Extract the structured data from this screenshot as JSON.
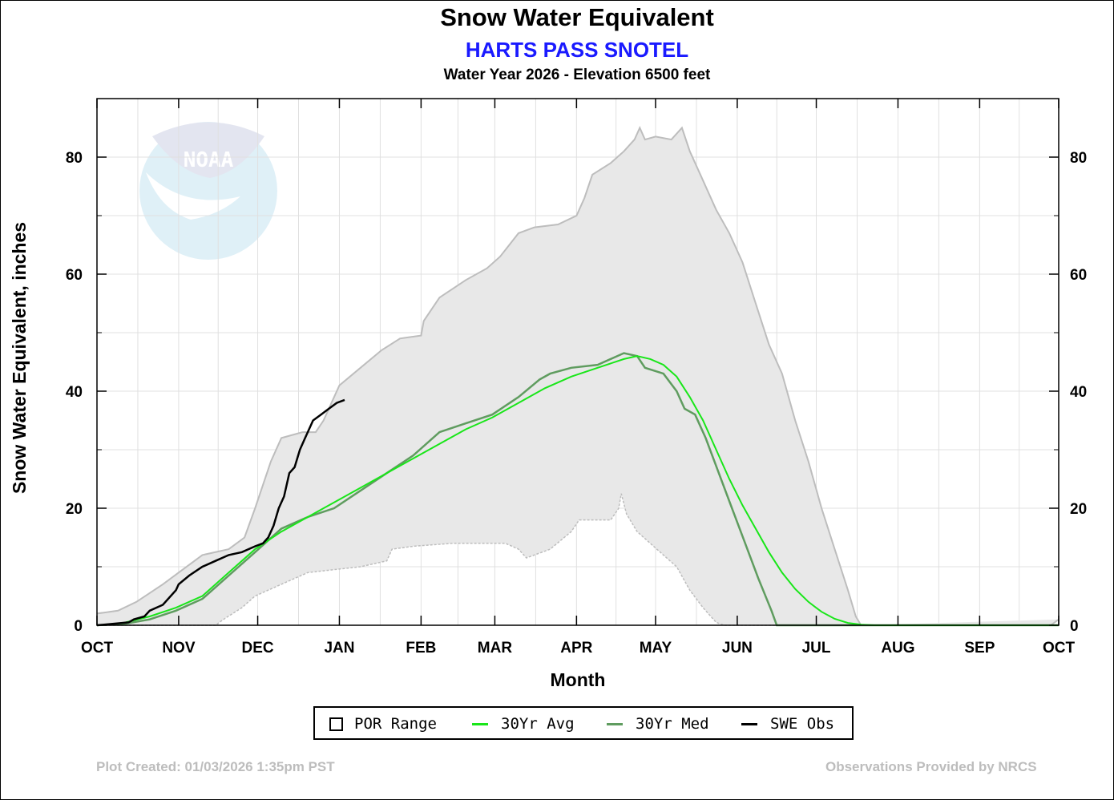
{
  "title": "Snow Water Equivalent",
  "subtitle": "HARTS PASS SNOTEL",
  "subtitle2": "Water Year 2026 -  Elevation 6500 feet",
  "footer_left": "Plot Created: 01/03/2026 1:35pm PST",
  "footer_right": "Observations Provided by NRCS",
  "logo_text": "NOAA",
  "legend": {
    "por": "POR Range",
    "avg": "30Yr Avg",
    "med": "30Yr Med",
    "obs": "SWE Obs"
  },
  "colors": {
    "por_fill": "#e8e8e8",
    "por_edge": "#bdbdbd",
    "avg": "#19e619",
    "med": "#5f9c5f",
    "obs": "#000000",
    "grid": "#e0e0e0"
  },
  "chart_data": {
    "type": "area",
    "title": "Snow Water Equivalent",
    "xlabel": "Month",
    "ylabel": "Snow Water Equivalent, inches",
    "ylim": [
      0,
      90
    ],
    "yticks": [
      0,
      20,
      40,
      60,
      80
    ],
    "xlim_days": [
      0,
      365
    ],
    "months": [
      {
        "label": "OCT",
        "day": 0
      },
      {
        "label": "NOV",
        "day": 31
      },
      {
        "label": "DEC",
        "day": 61
      },
      {
        "label": "JAN",
        "day": 92
      },
      {
        "label": "FEB",
        "day": 123
      },
      {
        "label": "MAR",
        "day": 151
      },
      {
        "label": "APR",
        "day": 182
      },
      {
        "label": "MAY",
        "day": 212
      },
      {
        "label": "JUN",
        "day": 243
      },
      {
        "label": "JUL",
        "day": 273
      },
      {
        "label": "AUG",
        "day": 304
      },
      {
        "label": "SEP",
        "day": 335
      },
      {
        "label": "OCT",
        "day": 365
      }
    ],
    "por_max": [
      [
        0,
        2
      ],
      [
        8,
        2.5
      ],
      [
        15,
        4
      ],
      [
        25,
        7
      ],
      [
        31,
        9
      ],
      [
        40,
        12
      ],
      [
        50,
        13
      ],
      [
        56,
        15
      ],
      [
        60,
        20
      ],
      [
        66,
        28
      ],
      [
        70,
        32
      ],
      [
        78,
        33
      ],
      [
        83,
        33
      ],
      [
        86,
        35
      ],
      [
        92,
        41
      ],
      [
        100,
        44
      ],
      [
        108,
        47
      ],
      [
        115,
        49
      ],
      [
        123,
        49.5
      ],
      [
        124,
        52
      ],
      [
        130,
        56
      ],
      [
        140,
        59
      ],
      [
        148,
        61
      ],
      [
        153,
        63
      ],
      [
        160,
        67
      ],
      [
        166,
        68
      ],
      [
        175,
        68.5
      ],
      [
        182,
        70
      ],
      [
        185,
        73
      ],
      [
        188,
        77
      ],
      [
        195,
        79
      ],
      [
        200,
        81
      ],
      [
        204,
        83
      ],
      [
        206,
        85
      ],
      [
        208,
        83
      ],
      [
        212,
        83.5
      ],
      [
        218,
        83
      ],
      [
        222,
        85
      ],
      [
        225,
        81
      ],
      [
        230,
        76
      ],
      [
        235,
        71
      ],
      [
        240,
        67
      ],
      [
        245,
        62
      ],
      [
        250,
        55
      ],
      [
        255,
        48
      ],
      [
        260,
        43
      ],
      [
        265,
        35
      ],
      [
        270,
        28
      ],
      [
        275,
        20
      ],
      [
        280,
        13
      ],
      [
        285,
        6
      ],
      [
        288,
        1.5
      ],
      [
        290,
        0
      ],
      [
        362,
        0
      ],
      [
        365,
        1
      ]
    ],
    "por_min": [
      [
        0,
        0
      ],
      [
        45,
        0
      ],
      [
        48,
        1
      ],
      [
        55,
        3
      ],
      [
        60,
        5
      ],
      [
        65,
        6
      ],
      [
        70,
        7
      ],
      [
        80,
        9
      ],
      [
        90,
        9.5
      ],
      [
        100,
        10
      ],
      [
        110,
        11
      ],
      [
        112,
        13
      ],
      [
        120,
        13.5
      ],
      [
        135,
        14
      ],
      [
        155,
        14
      ],
      [
        160,
        13
      ],
      [
        163,
        11.5
      ],
      [
        172,
        13
      ],
      [
        180,
        16
      ],
      [
        183,
        18
      ],
      [
        195,
        18
      ],
      [
        198,
        20
      ],
      [
        199,
        22.5
      ],
      [
        201,
        19
      ],
      [
        205,
        16
      ],
      [
        210,
        14
      ],
      [
        215,
        12
      ],
      [
        220,
        10
      ],
      [
        225,
        6
      ],
      [
        230,
        3
      ],
      [
        235,
        0.5
      ],
      [
        238,
        0
      ],
      [
        290,
        0
      ]
    ],
    "avg": [
      [
        0,
        0
      ],
      [
        10,
        0.4
      ],
      [
        20,
        1.5
      ],
      [
        30,
        3
      ],
      [
        40,
        5
      ],
      [
        50,
        9
      ],
      [
        60,
        13
      ],
      [
        70,
        16
      ],
      [
        80,
        18.5
      ],
      [
        90,
        21
      ],
      [
        100,
        23.5
      ],
      [
        110,
        26
      ],
      [
        120,
        28.5
      ],
      [
        130,
        31
      ],
      [
        140,
        33.5
      ],
      [
        150,
        35.5
      ],
      [
        160,
        38
      ],
      [
        170,
        40.5
      ],
      [
        180,
        42.5
      ],
      [
        190,
        44
      ],
      [
        200,
        45.5
      ],
      [
        205,
        46
      ],
      [
        210,
        45.5
      ],
      [
        215,
        44.5
      ],
      [
        220,
        42.5
      ],
      [
        225,
        39
      ],
      [
        230,
        35
      ],
      [
        235,
        30
      ],
      [
        240,
        25
      ],
      [
        245,
        20.5
      ],
      [
        250,
        16.5
      ],
      [
        255,
        12.5
      ],
      [
        260,
        9
      ],
      [
        265,
        6.2
      ],
      [
        270,
        4
      ],
      [
        275,
        2.3
      ],
      [
        280,
        1.1
      ],
      [
        285,
        0.4
      ],
      [
        290,
        0.1
      ],
      [
        295,
        0
      ],
      [
        365,
        0
      ]
    ],
    "median": [
      [
        0,
        0
      ],
      [
        10,
        0.2
      ],
      [
        20,
        1
      ],
      [
        30,
        2.5
      ],
      [
        40,
        4.5
      ],
      [
        50,
        8.5
      ],
      [
        60,
        12.5
      ],
      [
        70,
        16.5
      ],
      [
        80,
        18.5
      ],
      [
        90,
        20
      ],
      [
        100,
        23
      ],
      [
        110,
        26
      ],
      [
        120,
        29
      ],
      [
        130,
        33
      ],
      [
        140,
        34.5
      ],
      [
        150,
        36
      ],
      [
        160,
        39
      ],
      [
        168,
        42
      ],
      [
        172,
        43
      ],
      [
        180,
        44
      ],
      [
        190,
        44.5
      ],
      [
        200,
        46.5
      ],
      [
        205,
        46
      ],
      [
        208,
        44
      ],
      [
        215,
        43
      ],
      [
        220,
        40
      ],
      [
        223,
        37
      ],
      [
        227,
        36
      ],
      [
        231,
        32
      ],
      [
        236,
        26
      ],
      [
        241,
        20
      ],
      [
        246,
        14
      ],
      [
        251,
        8
      ],
      [
        256,
        2.5
      ],
      [
        258,
        0
      ],
      [
        365,
        0
      ]
    ],
    "obs": [
      [
        0,
        0
      ],
      [
        12,
        0.5
      ],
      [
        14,
        1
      ],
      [
        18,
        1.5
      ],
      [
        20,
        2.5
      ],
      [
        25,
        3.5
      ],
      [
        30,
        6
      ],
      [
        31,
        7
      ],
      [
        35,
        8.5
      ],
      [
        40,
        10
      ],
      [
        45,
        11
      ],
      [
        50,
        12
      ],
      [
        55,
        12.5
      ],
      [
        60,
        13.5
      ],
      [
        63,
        14
      ],
      [
        65,
        15
      ],
      [
        67,
        17
      ],
      [
        69,
        20
      ],
      [
        71,
        22
      ],
      [
        73,
        26
      ],
      [
        75,
        27
      ],
      [
        77,
        30
      ],
      [
        79,
        32
      ],
      [
        82,
        35
      ],
      [
        85,
        36
      ],
      [
        88,
        37
      ],
      [
        91,
        38
      ],
      [
        94,
        38.5
      ]
    ]
  }
}
